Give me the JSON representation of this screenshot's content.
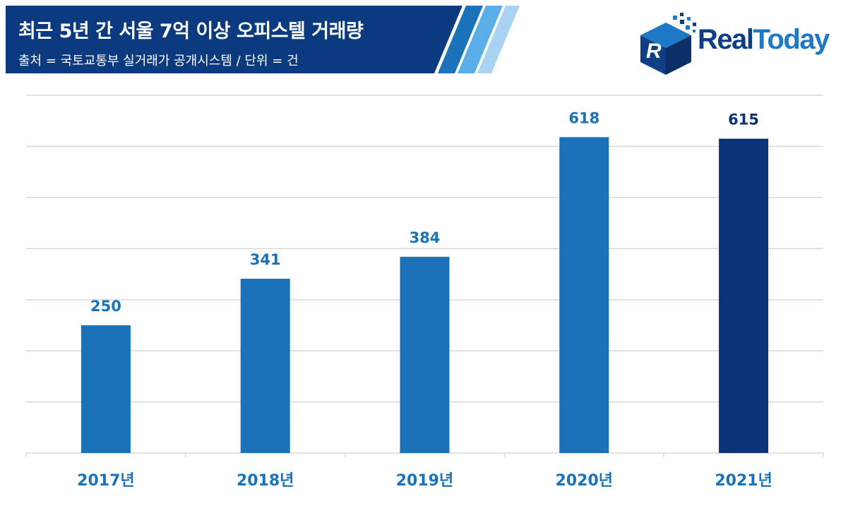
{
  "header": {
    "title": "최근 5년 간 서울 7억 이상 오피스텔 거래량",
    "subtitle": "출처 = 국토교통부 실거래가 공개시스템 / 단위 = 건"
  },
  "logo": {
    "part1": "Real",
    "part2": "Today"
  },
  "colors": {
    "banner": "#0b3a7e",
    "bar": "#1a73b8",
    "bar_highlight": "#0a3378",
    "label": "#1a73b8",
    "label_highlight": "#0a3378",
    "grid": "#d9d9d9"
  },
  "chart_data": {
    "type": "bar",
    "categories": [
      "2017년",
      "2018년",
      "2019년",
      "2020년",
      "2021년"
    ],
    "values": [
      250,
      341,
      384,
      618,
      615
    ],
    "highlight_index": 4,
    "ylim": [
      0,
      700
    ],
    "gridlines": true
  }
}
